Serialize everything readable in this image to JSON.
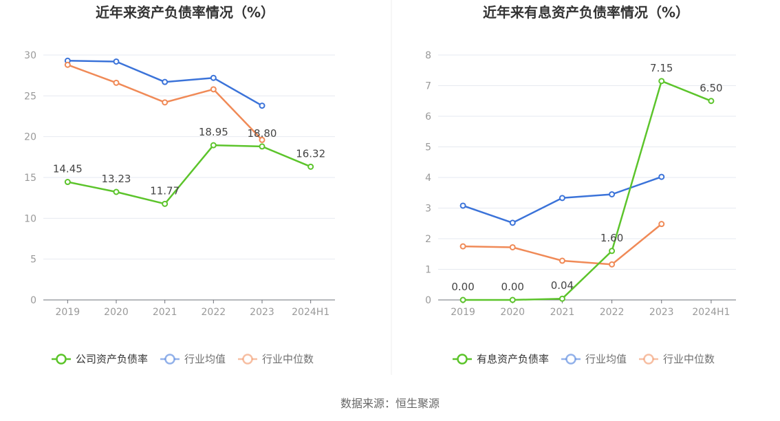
{
  "source_label": "数据来源：恒生聚源",
  "colors": {
    "company": "#5CC42B",
    "avg": "#3B73D9",
    "median": "#F08A57"
  },
  "chart_data": [
    {
      "type": "line",
      "title": "近年来资产负债率情况（%）",
      "categories": [
        "2019",
        "2020",
        "2021",
        "2022",
        "2023",
        "2024H1"
      ],
      "ylim": [
        0,
        30
      ],
      "yticks": [
        0,
        5,
        10,
        15,
        20,
        25,
        30
      ],
      "grid": true,
      "legend_position": "bottom",
      "series": [
        {
          "name": "公司资产负债率",
          "key": "company",
          "values": [
            14.45,
            13.23,
            11.77,
            18.95,
            18.8,
            16.32
          ],
          "labels": [
            "14.45",
            "13.23",
            "11.77",
            "18.95",
            "18.80",
            "16.32"
          ]
        },
        {
          "name": "行业均值",
          "key": "avg",
          "values": [
            29.3,
            29.2,
            26.7,
            27.2,
            23.8,
            null
          ]
        },
        {
          "name": "行业中位数",
          "key": "median",
          "values": [
            28.8,
            26.6,
            24.2,
            25.8,
            19.6,
            null
          ]
        }
      ]
    },
    {
      "type": "line",
      "title": "近年来有息资产负债率情况（%）",
      "categories": [
        "2019",
        "2020",
        "2021",
        "2022",
        "2023",
        "2024H1"
      ],
      "ylim": [
        0,
        8
      ],
      "yticks": [
        0,
        1,
        2,
        3,
        4,
        5,
        6,
        7,
        8
      ],
      "grid": true,
      "legend_position": "bottom",
      "series": [
        {
          "name": "有息资产负债率",
          "key": "company",
          "values": [
            0.0,
            0.0,
            0.04,
            1.6,
            7.15,
            6.5
          ],
          "labels": [
            "0.00",
            "0.00",
            "0.04",
            "1.60",
            "7.15",
            "6.50"
          ]
        },
        {
          "name": "行业均值",
          "key": "avg",
          "values": [
            3.08,
            2.52,
            3.33,
            3.45,
            4.02,
            null
          ]
        },
        {
          "name": "行业中位数",
          "key": "median",
          "values": [
            1.75,
            1.72,
            1.28,
            1.16,
            2.48,
            null
          ]
        }
      ]
    }
  ]
}
